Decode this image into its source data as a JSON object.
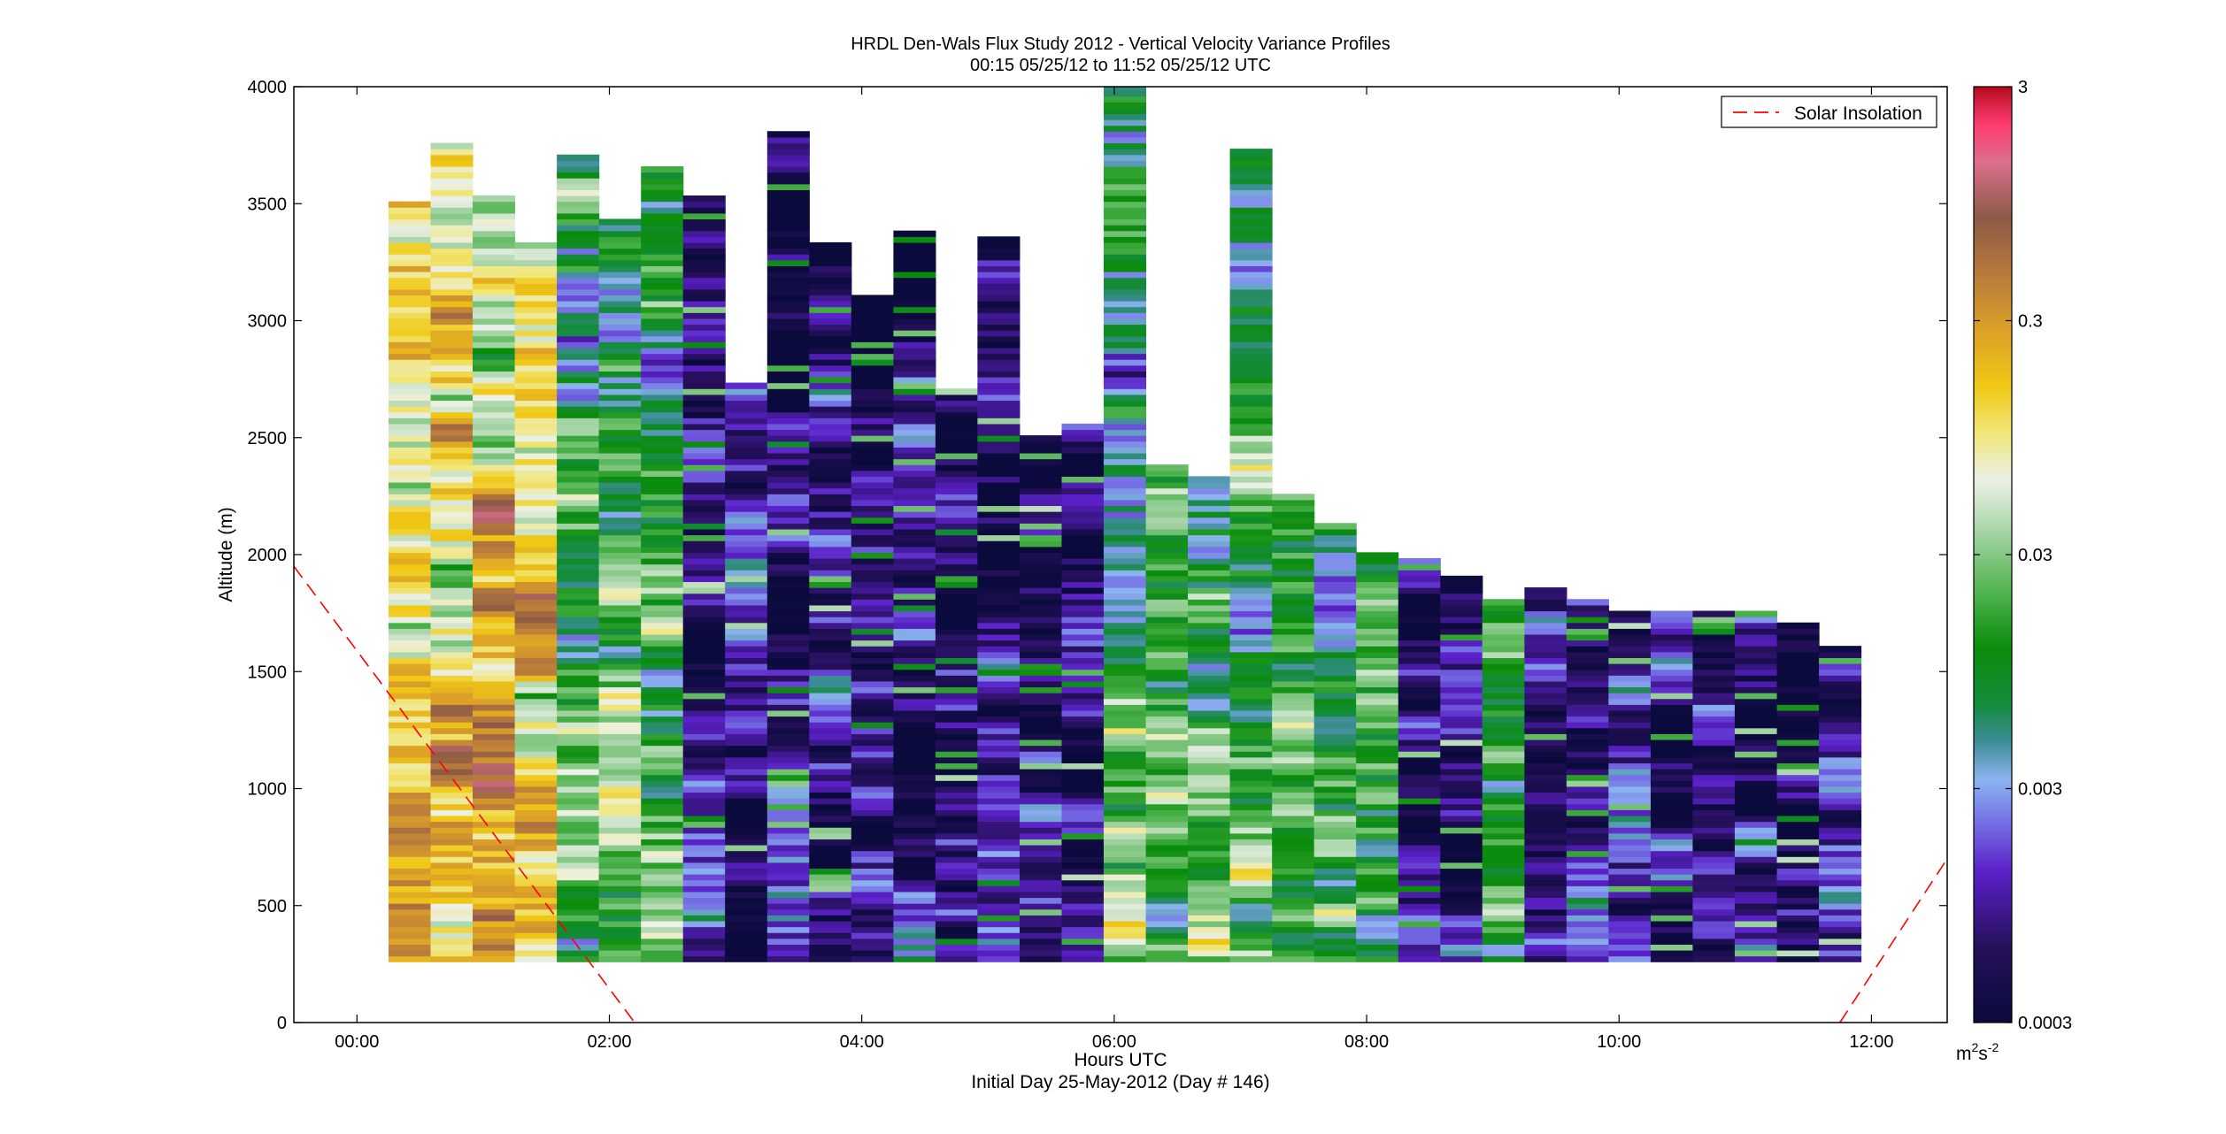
{
  "chart_data": {
    "type": "heatmap",
    "title": "HRDL Den-Wals Flux Study 2012 - Vertical Velocity Variance Profiles",
    "subtitle": "00:15 05/25/12 to 11:52 05/25/12  UTC",
    "xlabel": "Hours UTC",
    "xlabel2": "Initial Day 25-May-2012 (Day # 146)",
    "ylabel": "Altitude (m)",
    "x_units": "hours",
    "xlim": [
      -0.5,
      12.6
    ],
    "ylim": [
      0,
      4000
    ],
    "x_ticks": [
      0,
      2,
      4,
      6,
      8,
      10,
      12
    ],
    "x_tick_labels": [
      "00:00",
      "02:00",
      "04:00",
      "06:00",
      "08:00",
      "10:00",
      "12:00"
    ],
    "y_ticks": [
      0,
      500,
      1000,
      1500,
      2000,
      2500,
      3000,
      3500,
      4000
    ],
    "y_tick_labels": [
      "0",
      "500",
      "1000",
      "1500",
      "2000",
      "2500",
      "3000",
      "3500",
      "4000"
    ],
    "colorbar": {
      "scale": "log",
      "range": [
        0.0003,
        3
      ],
      "ticks": [
        0.0003,
        0.003,
        0.03,
        0.3,
        3
      ],
      "tick_labels": [
        "0.0003",
        "0.003",
        "0.03",
        "0.3",
        "3"
      ],
      "unit_base": "m",
      "unit_sup1": "2",
      "unit_mid": "s",
      "unit_sup2": "-2"
    },
    "profile_times": [
      0.417,
      0.75,
      1.083,
      1.417,
      1.75,
      2.083,
      2.417,
      2.75,
      3.083,
      3.417,
      3.75,
      4.083,
      4.417,
      4.75,
      5.083,
      5.417,
      5.75,
      6.083,
      6.417,
      6.75,
      7.083,
      7.417,
      7.75,
      8.083,
      8.417,
      8.75,
      9.083,
      9.417,
      9.75,
      10.083,
      10.417,
      10.75,
      11.083,
      11.417,
      11.75
    ],
    "profile_bottom_m": 260,
    "profile_tops_m": [
      3500,
      3760,
      3520,
      3330,
      3700,
      3430,
      3640,
      3520,
      2720,
      3790,
      3320,
      3100,
      3380,
      2690,
      3340,
      2510,
      2540,
      4000,
      2380,
      2320,
      3730,
      2240,
      2120,
      2000,
      1970,
      1900,
      1790,
      1850,
      1790,
      1760,
      1760,
      1760,
      1760,
      1700,
      1610
    ],
    "profile_variance_level": [
      "high",
      "high",
      "high",
      "high",
      "moderate",
      "moderate",
      "moderate",
      "low",
      "low",
      "low",
      "low",
      "low",
      "low",
      "low",
      "low",
      "low",
      "low",
      "moderate",
      "moderate",
      "moderate",
      "moderate",
      "moderate",
      "moderate",
      "moderate",
      "low",
      "low",
      "moderate",
      "low",
      "low",
      "low",
      "low",
      "low",
      "low",
      "low",
      "low"
    ],
    "series": [
      {
        "name": "Solar Insolation",
        "style": "dashed",
        "color": "#ff0000",
        "x": [
          -0.5,
          2.2
        ],
        "y": [
          1950,
          0
        ]
      },
      {
        "name": "Solar Insolation",
        "style": "dashed",
        "color": "#ff0000",
        "x": [
          11.75,
          12.6
        ],
        "y": [
          0,
          700
        ]
      }
    ],
    "legend": {
      "placement": "top-right",
      "entries": [
        "Solar Insolation"
      ]
    },
    "grid": false
  }
}
